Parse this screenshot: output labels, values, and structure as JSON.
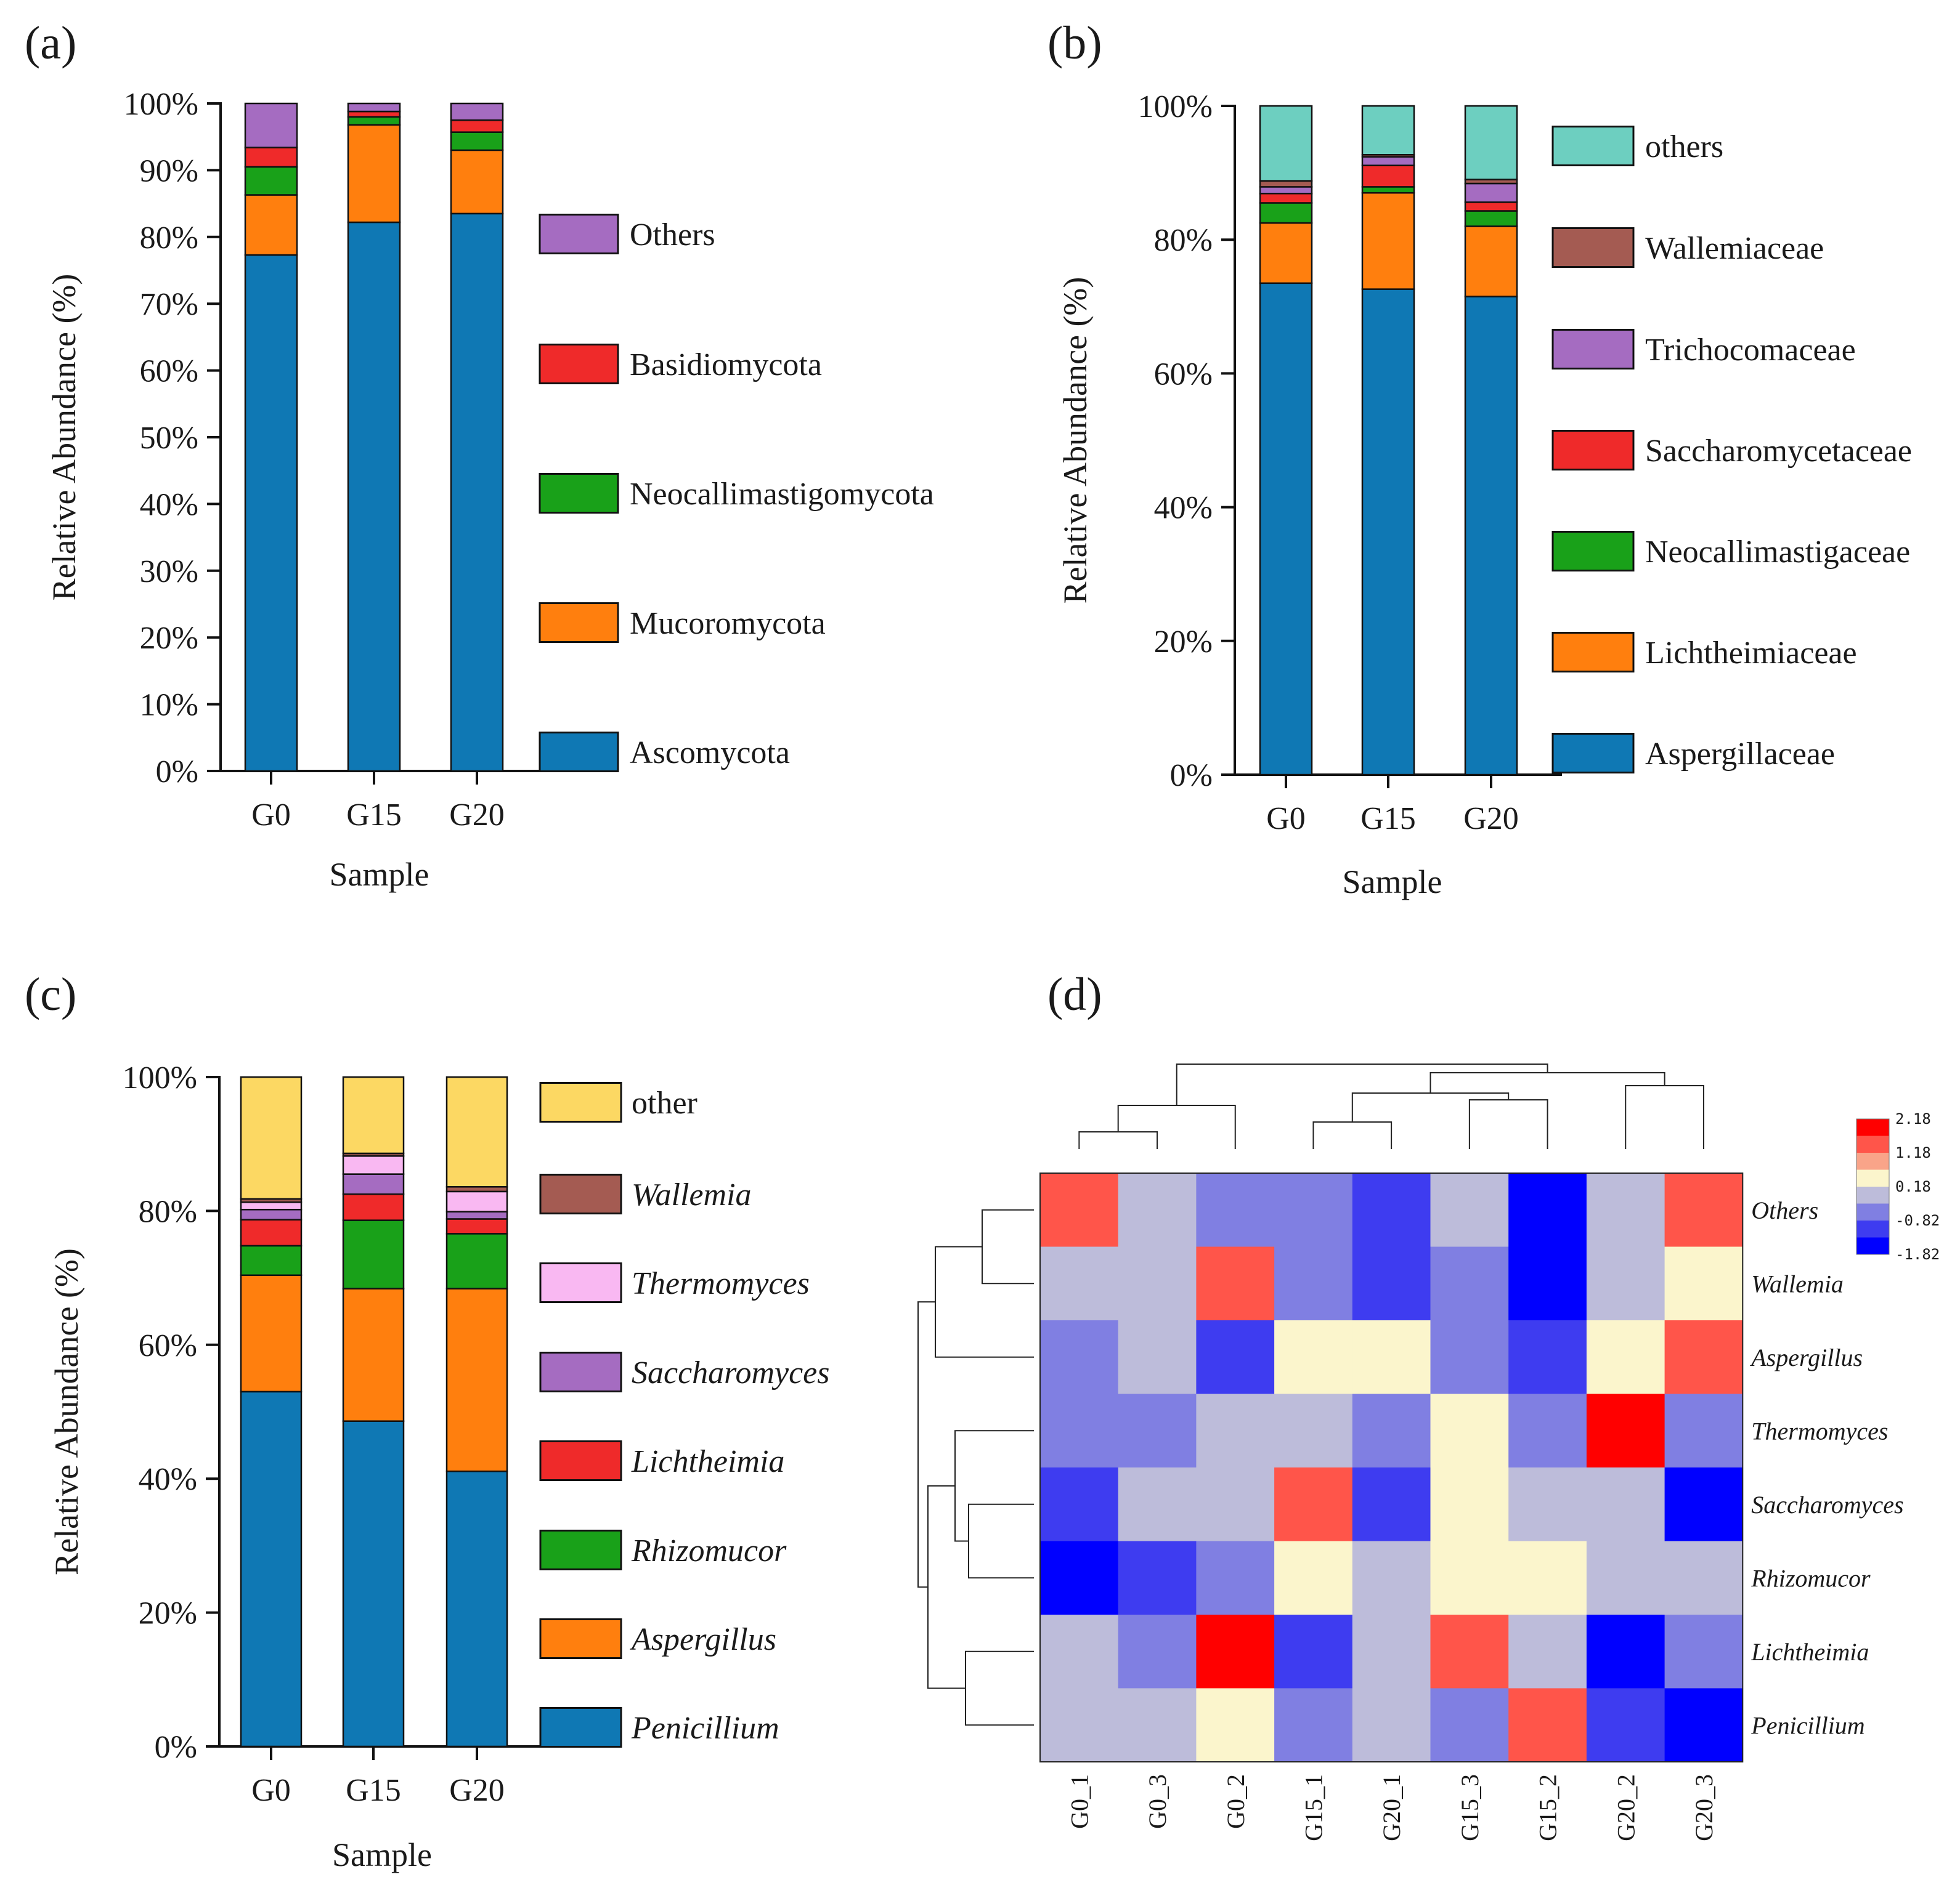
{
  "colors": {
    "blue": "#0f78b4",
    "orange": "#ff7f0e",
    "green": "#19a119",
    "red": "#ef2a2a",
    "purple": "#a56cc1",
    "teal": "#6dcfc0",
    "brown": "#a45b52",
    "pink": "#f9b8f2",
    "yellow": "#fcd863",
    "brightred": "#ff0000"
  },
  "chart_data": [
    {
      "id": "a",
      "panel_label": "(a)",
      "type": "bar",
      "stacked": true,
      "xlabel": "Sample",
      "ylabel": "Relative Abundance (%)",
      "ylim": [
        0,
        100
      ],
      "yticks": [
        "0%",
        "10%",
        "20%",
        "30%",
        "40%",
        "50%",
        "60%",
        "70%",
        "80%",
        "90%",
        "100%"
      ],
      "categories": [
        "G0",
        "G15",
        "G20"
      ],
      "series": [
        {
          "name": "Ascomycota",
          "color": "#0f78b4",
          "italic": false,
          "values": [
            77.3,
            82.2,
            83.5
          ]
        },
        {
          "name": "Mucoromycota",
          "color": "#ff7f0e",
          "italic": false,
          "values": [
            9.0,
            14.6,
            9.5
          ]
        },
        {
          "name": "Neocallimastigomycota",
          "color": "#19a119",
          "italic": false,
          "values": [
            4.2,
            1.2,
            2.7
          ]
        },
        {
          "name": "Basidiomycota",
          "color": "#ef2a2a",
          "italic": false,
          "values": [
            2.9,
            0.8,
            1.8
          ]
        },
        {
          "name": "Others",
          "color": "#a56cc1",
          "italic": false,
          "values": [
            6.6,
            1.2,
            2.5
          ]
        }
      ]
    },
    {
      "id": "b",
      "panel_label": "(b)",
      "type": "bar",
      "stacked": true,
      "xlabel": "Sample",
      "ylabel": "Relative Abundance (%)",
      "ylim": [
        0,
        100
      ],
      "yticks": [
        "0%",
        "20%",
        "40%",
        "60%",
        "80%",
        "100%"
      ],
      "categories": [
        "G0",
        "G15",
        "G20"
      ],
      "series": [
        {
          "name": "Aspergillaceae",
          "color": "#0f78b4",
          "italic": false,
          "values": [
            73.5,
            72.6,
            71.5
          ]
        },
        {
          "name": "Lichtheimiaceae",
          "color": "#ff7f0e",
          "italic": false,
          "values": [
            9.0,
            14.4,
            10.5
          ]
        },
        {
          "name": "Neocallimastigaceae",
          "color": "#19a119",
          "italic": false,
          "values": [
            3.0,
            0.9,
            2.3
          ]
        },
        {
          "name": "Saccharomycetaceae",
          "color": "#ef2a2a",
          "italic": false,
          "values": [
            1.4,
            3.2,
            1.3
          ]
        },
        {
          "name": "Trichocomaceae",
          "color": "#a56cc1",
          "italic": false,
          "values": [
            1.0,
            1.3,
            2.8
          ]
        },
        {
          "name": "Wallemiaceae",
          "color": "#a45b52",
          "italic": false,
          "values": [
            0.9,
            0.3,
            0.6
          ]
        },
        {
          "name": "others",
          "color": "#6dcfc0",
          "italic": false,
          "values": [
            11.2,
            7.3,
            11.0
          ]
        }
      ]
    },
    {
      "id": "c",
      "panel_label": "(c)",
      "type": "bar",
      "stacked": true,
      "xlabel": "Sample",
      "ylabel": "Relative Abundance (%)",
      "ylim": [
        0,
        100
      ],
      "yticks": [
        "0%",
        "20%",
        "40%",
        "60%",
        "80%",
        "100%"
      ],
      "categories": [
        "G0",
        "G15",
        "G20"
      ],
      "series": [
        {
          "name": "Penicillium",
          "color": "#0f78b4",
          "italic": true,
          "values": [
            53.0,
            48.6,
            41.1
          ]
        },
        {
          "name": "Aspergillus",
          "color": "#ff7f0e",
          "italic": true,
          "values": [
            17.4,
            19.8,
            27.3
          ]
        },
        {
          "name": "Rhizomucor",
          "color": "#19a119",
          "italic": true,
          "values": [
            4.4,
            10.2,
            8.2
          ]
        },
        {
          "name": "Lichtheimia",
          "color": "#ef2a2a",
          "italic": true,
          "values": [
            3.9,
            3.9,
            2.2
          ]
        },
        {
          "name": "Saccharomyces",
          "color": "#a56cc1",
          "italic": true,
          "values": [
            1.5,
            3.0,
            1.1
          ]
        },
        {
          "name": "Thermomyces",
          "color": "#f9b8f2",
          "italic": true,
          "values": [
            1.1,
            2.7,
            3.0
          ]
        },
        {
          "name": "Wallemia",
          "color": "#a45b52",
          "italic": true,
          "values": [
            0.5,
            0.4,
            0.7
          ]
        },
        {
          "name": "other",
          "color": "#fcd863",
          "italic": false,
          "values": [
            18.2,
            11.4,
            16.4
          ]
        }
      ]
    },
    {
      "id": "d",
      "panel_label": "(d)",
      "type": "heatmap",
      "columns": [
        "G0_1",
        "G0_3",
        "G0_2",
        "G15_1",
        "G20_1",
        "G15_3",
        "G15_2",
        "G20_2",
        "G20_3"
      ],
      "rows": [
        "Others",
        "Wallemia",
        "Aspergillus",
        "Thermomyces",
        "Saccharomyces",
        "Rhizomucor",
        "Lichtheimia",
        "Penicillium"
      ],
      "values": [
        [
          1.68,
          0.18,
          -0.82,
          -0.82,
          -1.32,
          -0.32,
          -1.82,
          -0.32,
          1.68
        ],
        [
          0.18,
          0.18,
          1.68,
          -0.82,
          -1.32,
          -0.82,
          -1.82,
          0.18,
          0.68
        ],
        [
          -0.82,
          -0.32,
          -1.32,
          0.68,
          0.68,
          -0.82,
          -1.32,
          0.68,
          1.68
        ],
        [
          -0.82,
          -0.82,
          -0.32,
          -0.32,
          -0.82,
          0.68,
          -0.82,
          2.18,
          -0.82
        ],
        [
          -1.32,
          -0.32,
          -0.32,
          1.68,
          -1.32,
          0.68,
          0.18,
          0.18,
          -1.82
        ],
        [
          -1.82,
          -1.32,
          -0.82,
          0.68,
          0.18,
          0.68,
          0.68,
          -0.32,
          -0.32
        ],
        [
          -0.32,
          -0.82,
          2.18,
          -1.32,
          -0.32,
          1.68,
          0.18,
          -1.82,
          -0.82
        ],
        [
          0.18,
          0.18,
          0.68,
          -0.82,
          -0.32,
          -0.82,
          1.68,
          -1.32,
          -1.82
        ]
      ],
      "scale": {
        "ticks": [
          "2.18",
          "1.18",
          "0.18",
          "-0.82",
          "-1.82"
        ],
        "colors": [
          "#ff0000",
          "#ff554a",
          "#f9a489",
          "#fbf5cc",
          "#bdbcda",
          "#807fe2",
          "#3e3cf0",
          "#0000ff"
        ]
      }
    }
  ]
}
